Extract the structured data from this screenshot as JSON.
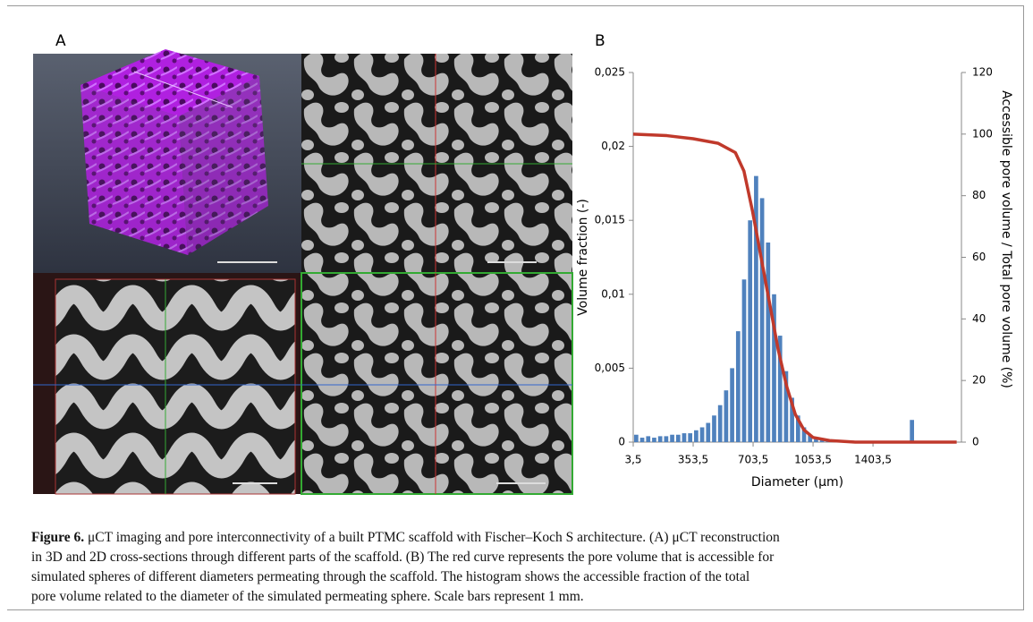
{
  "panel_a": {
    "label": "A"
  },
  "chart_data": {
    "type": "histogram",
    "label": "B",
    "xlabel": "Diameter (μm)",
    "ylabel": "Volume fraction (-)",
    "y2label": "Accessible pore volume / Total pore volume (%)",
    "bins": [
      3.5,
      38.5,
      73.5,
      108.5,
      143.5,
      178.5,
      213.5,
      248.5,
      283.5,
      318.5,
      353.5,
      388.5,
      423.5,
      458.5,
      493.5,
      528.5,
      563.5,
      598.5,
      633.5,
      668.5,
      703.5,
      738.5,
      773.5,
      808.5,
      843.5,
      878.5,
      913.5,
      948.5,
      983.5,
      1018.5,
      1053.5,
      1088.5,
      1123.5,
      1158.5,
      1193.5,
      1228.5,
      1263.5,
      1298.5,
      1333.5,
      1368.5,
      1403.5,
      1438.5,
      1473.5,
      1508.5,
      1543.5,
      1578.5,
      1613.5,
      1648.5,
      1683.5,
      1718.5,
      1753.5,
      1788.5,
      1823.5,
      1858.5,
      1893.5
    ],
    "values": [
      0.0005,
      0.0003,
      0.0004,
      0.0003,
      0.0004,
      0.0004,
      0.0005,
      0.0005,
      0.0006,
      0.0006,
      0.0008,
      0.001,
      0.0013,
      0.0018,
      0.0025,
      0.0035,
      0.005,
      0.0075,
      0.011,
      0.015,
      0.018,
      0.0165,
      0.0135,
      0.01,
      0.0072,
      0.0048,
      0.003,
      0.0018,
      0.001,
      0.0005,
      0.0003,
      0.0002,
      0.0001,
      0.0001,
      0.0001,
      0.0001,
      0.0001,
      0,
      0,
      0,
      0,
      0,
      0,
      0,
      0,
      0,
      0.0015,
      0,
      0,
      0,
      0,
      0,
      0,
      0
    ],
    "color": "#4f81bd",
    "line": {
      "x": [
        3.5,
        200,
        353.5,
        500,
        600,
        650,
        700,
        750,
        800,
        850,
        900,
        950,
        1000,
        1053.5,
        1150,
        1300,
        1892
      ],
      "values": [
        100,
        99.5,
        98.5,
        97,
        94,
        88,
        75,
        60,
        45,
        30,
        18,
        9,
        4,
        1.5,
        0.5,
        0,
        0
      ],
      "color": "#c0392b",
      "axis": "y2"
    },
    "xlim": [
      3.5,
      1920
    ],
    "ylim": [
      0,
      0.025
    ],
    "y2lim": [
      0,
      120
    ],
    "xticks": [
      {
        "value": 3.5,
        "label": "3,5"
      },
      {
        "value": 353.5,
        "label": "353,5"
      },
      {
        "value": 703.5,
        "label": "703,5"
      },
      {
        "value": 1053.5,
        "label": "1053,5"
      },
      {
        "value": 1403.5,
        "label": "1403,5"
      }
    ],
    "yticks": [
      0,
      {
        "value": 0.005,
        "label": "0,005"
      },
      {
        "value": 0.01,
        "label": "0,01"
      },
      {
        "value": 0.015,
        "label": "0,015"
      },
      {
        "value": 0.02,
        "label": "0,02"
      },
      {
        "value": 0.025,
        "label": "0,025"
      }
    ],
    "y2ticks": [
      0,
      20,
      40,
      60,
      80,
      100,
      120
    ]
  },
  "caption": {
    "label": "Figure 6.",
    "lines": [
      " μCT imaging and pore interconnectivity of a built PTMC scaffold with Fischer–Koch S architecture. (A) μCT reconstruction",
      "in 3D and 2D cross-sections through different parts of the scaffold. (B) The red curve represents the pore volume that is accessible for",
      "simulated spheres of different diameters permeating through the scaffold. The histogram shows the accessible fraction of the total",
      "pore volume related to the diameter of the simulated permeating sphere. Scale bars represent 1 mm."
    ]
  }
}
